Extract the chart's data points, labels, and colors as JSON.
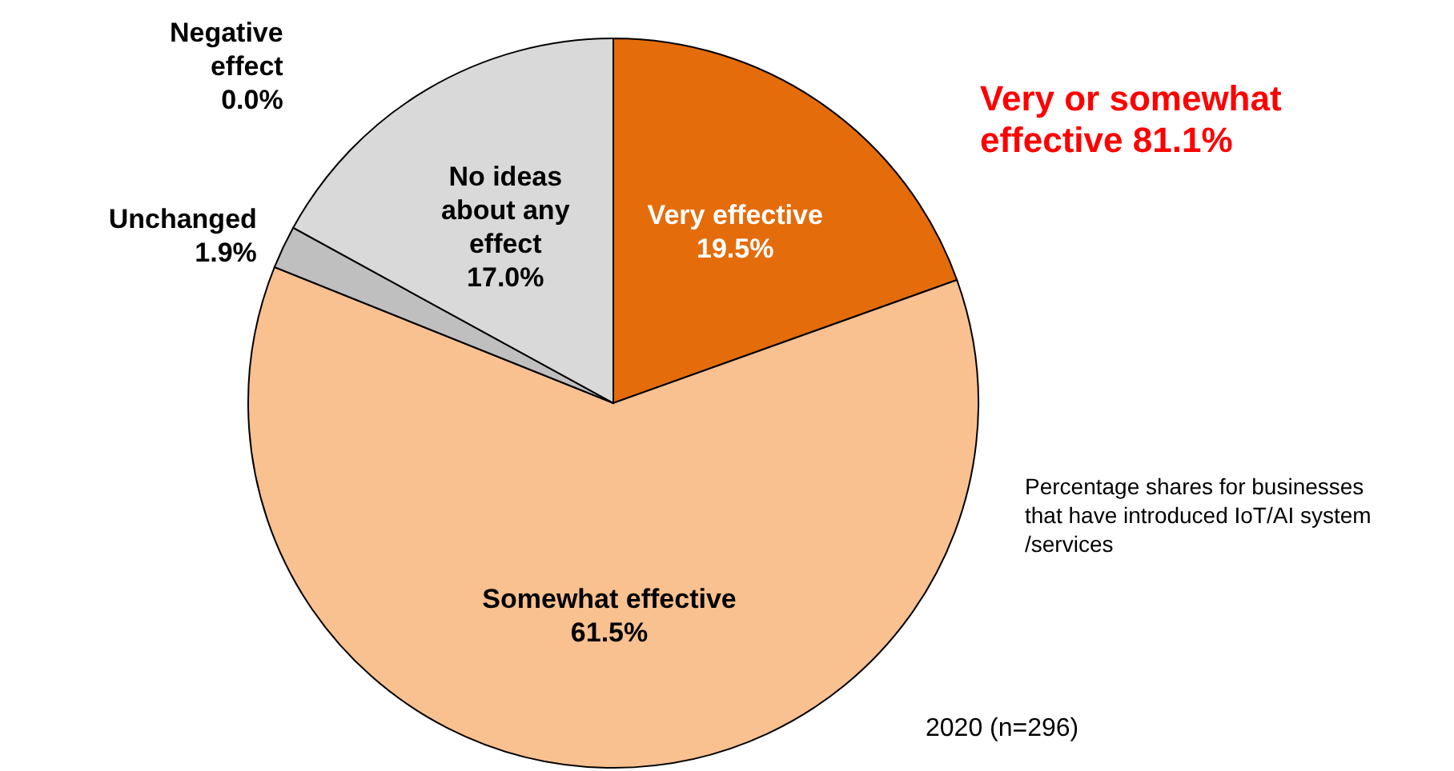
{
  "chart_data": {
    "type": "pie",
    "categories": [
      "Very effective",
      "Somewhat effective",
      "Unchanged",
      "Negative effect",
      "No ideas about any effect"
    ],
    "values": [
      19.5,
      61.5,
      1.9,
      0.0,
      17.0
    ],
    "value_labels": [
      "19.5%",
      "61.5%",
      "1.9%",
      "0.0%",
      "17.0%"
    ],
    "colors": [
      "#e46c0a",
      "#f9c090",
      "#bfbfbf",
      "#ffffff",
      "#d9d9d9"
    ],
    "annotations": [
      "Very or somewhat effective 81.1%",
      "Percentage shares for businesses that have introduced IoT/AI system /services",
      "2020 (n=296)"
    ]
  }
}
